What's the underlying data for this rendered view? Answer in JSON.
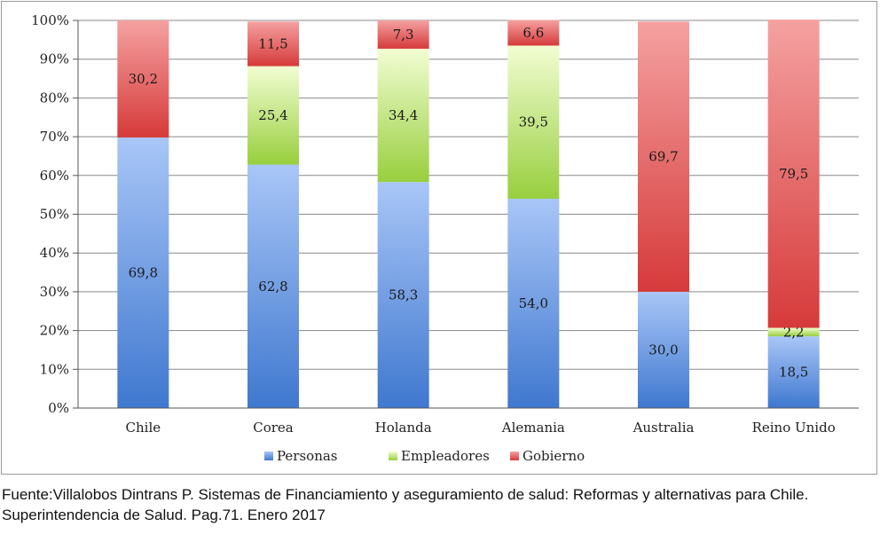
{
  "chart_data": {
    "type": "bar",
    "stacked": true,
    "percent": true,
    "categories": [
      "Chile",
      "Corea",
      "Holanda",
      "Alemania",
      "Australia",
      "Reino Unido"
    ],
    "series": [
      {
        "name": "Personas",
        "values": [
          69.8,
          62.8,
          58.3,
          54.0,
          30.0,
          18.5
        ],
        "labels": [
          "69,8",
          "62,8",
          "58,3",
          "54,0",
          "30,0",
          "18,5"
        ],
        "color": "#6f9fe8"
      },
      {
        "name": "Empleadores",
        "values": [
          0,
          25.4,
          34.4,
          39.5,
          0,
          2.2
        ],
        "labels": [
          "",
          "25,4",
          "34,4",
          "39,5",
          "",
          "2,2"
        ],
        "color": "#b6e36a"
      },
      {
        "name": "Gobierno",
        "values": [
          30.2,
          11.5,
          7.3,
          6.6,
          69.7,
          79.5
        ],
        "labels": [
          "30,2",
          "11,5",
          "7,3",
          "6,6",
          "69,7",
          "79,5"
        ],
        "color": "#e55a5a"
      }
    ],
    "yticks": [
      "0%",
      "10%",
      "20%",
      "30%",
      "40%",
      "50%",
      "60%",
      "70%",
      "80%",
      "90%",
      "100%"
    ],
    "ylim": [
      0,
      100
    ],
    "grid": true,
    "legend": "bottom"
  },
  "source_note": "Fuente:Villalobos Dintrans P. Sistemas de Financiamiento y aseguramiento de salud: Reformas y alternativas para Chile. Superintendencia de Salud. Pag.71. Enero 2017"
}
